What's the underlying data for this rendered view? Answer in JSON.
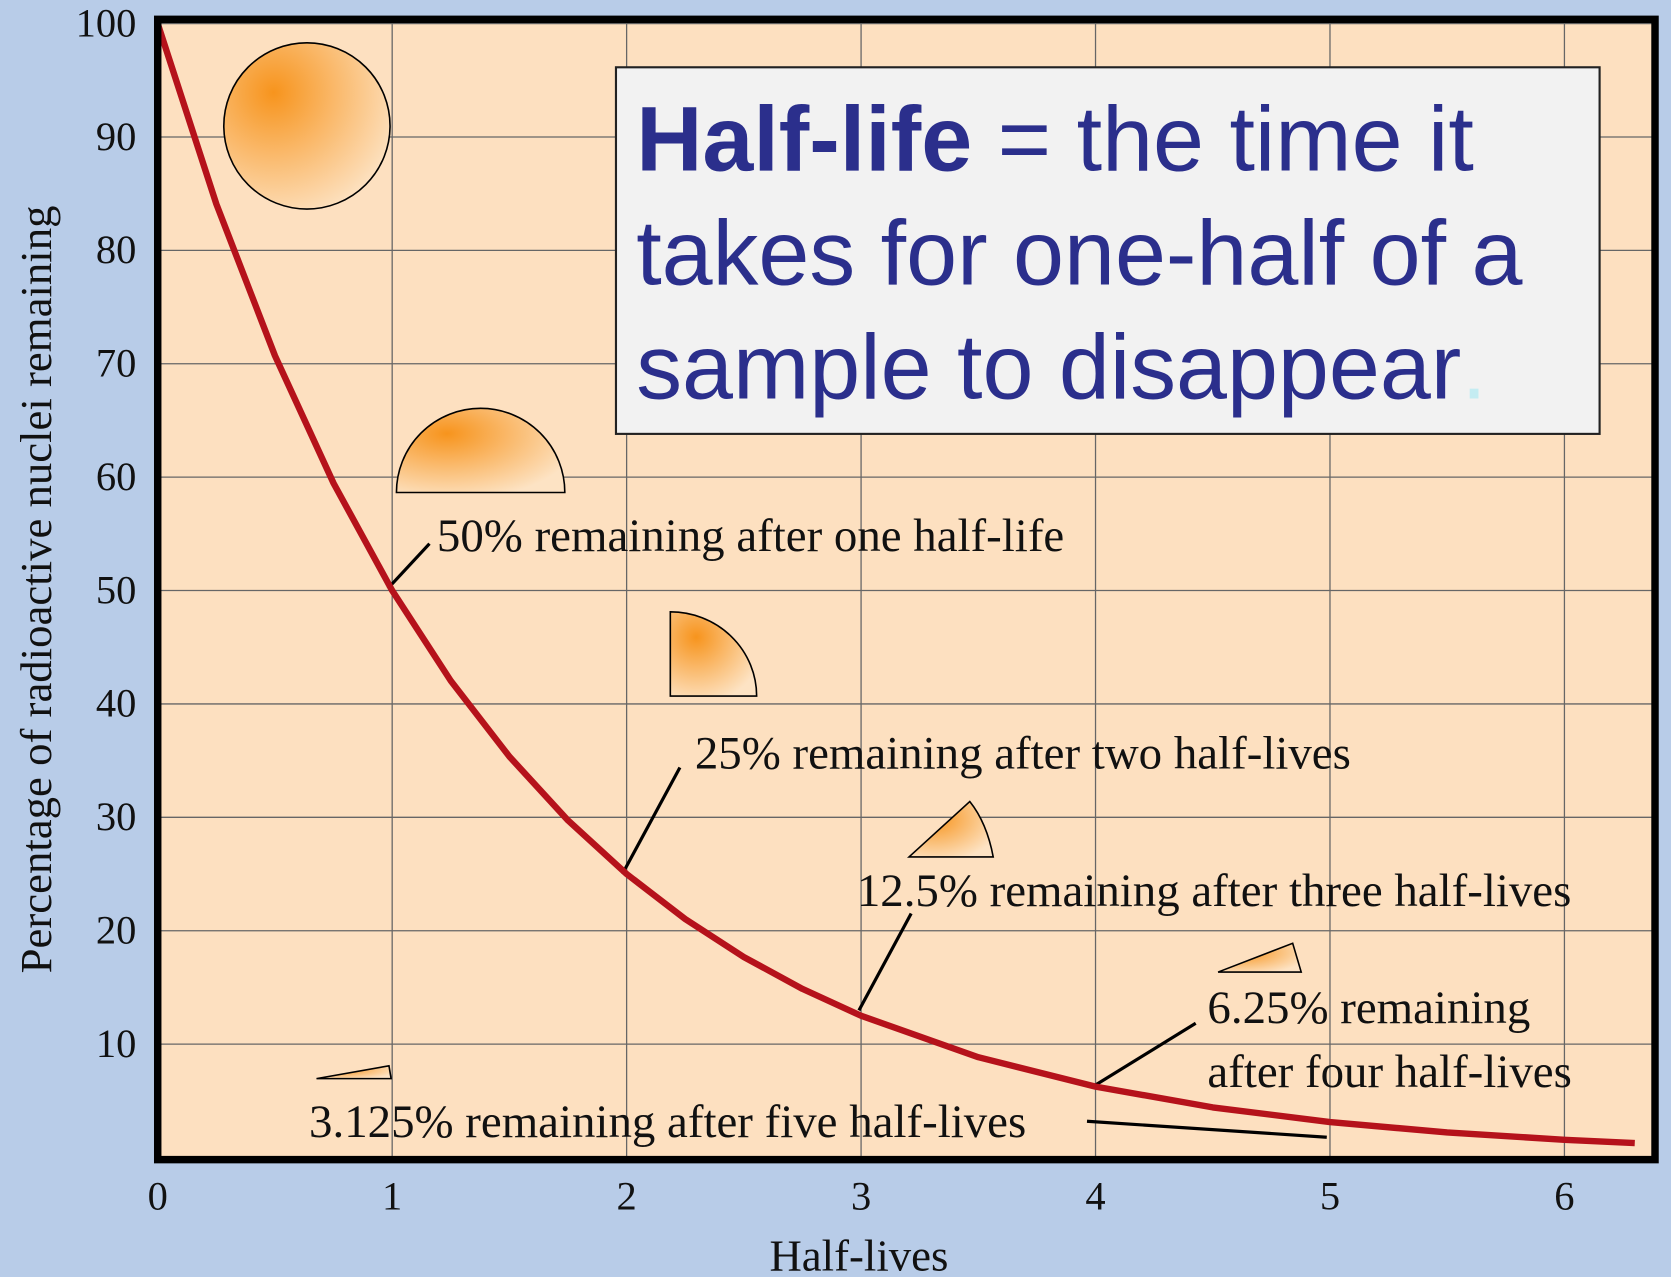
{
  "chart_data": {
    "type": "line",
    "x_label": "Half-lives",
    "y_label": "Percentage of radioactive nuclei remaining",
    "x": [
      0,
      0.25,
      0.5,
      0.75,
      1,
      1.25,
      1.5,
      1.75,
      2,
      2.25,
      2.5,
      2.75,
      3,
      3.5,
      4,
      4.5,
      5,
      5.5,
      6,
      6.3
    ],
    "series": [
      {
        "color": "#b5121b",
        "values": [
          100,
          84.09,
          70.71,
          59.46,
          50,
          42.04,
          35.36,
          29.73,
          25,
          21.02,
          17.68,
          14.87,
          12.5,
          8.84,
          6.25,
          4.42,
          3.125,
          2.21,
          1.56,
          1.27
        ]
      }
    ],
    "xlim": [
      0,
      6.4
    ],
    "ylim": [
      0,
      100
    ],
    "xticks": [
      0,
      1,
      2,
      3,
      4,
      5,
      6
    ],
    "yticks": [
      10,
      20,
      30,
      40,
      50,
      60,
      70,
      80,
      90,
      100
    ],
    "grid": true,
    "annotations": [
      "50% remaining after one half-life",
      "25% remaining after two half-lives",
      "12.5% remaining after three half-lives",
      "6.25% remaining",
      "after four half-lives",
      "3.125% remaining after five half-lives"
    ],
    "definition": {
      "term": "Half-life",
      "lines": [
        " = the time it",
        "takes for one-half of a",
        "sample to disappear"
      ],
      "period": "."
    }
  }
}
